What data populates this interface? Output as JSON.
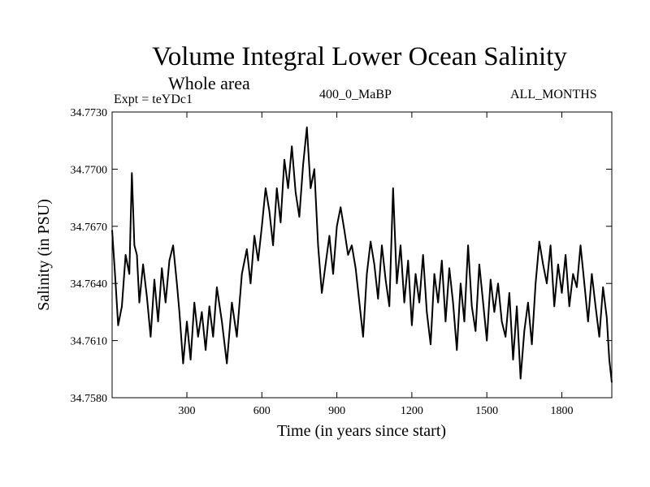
{
  "chart_data": {
    "type": "line",
    "title": "Volume Integral Lower Ocean Salinity",
    "subtitle": "Whole area",
    "left_note": "Expt = teYDc1",
    "center_note": "400_0_MaBP",
    "right_note": "ALL_MONTHS",
    "xlabel": "Time (in years since start)",
    "ylabel": "Salinity (in PSU)",
    "xlim": [
      1,
      2000
    ],
    "ylim": [
      34.758,
      34.773
    ],
    "xticks": [
      300,
      600,
      900,
      1200,
      1500,
      1800
    ],
    "yticks": [
      34.758,
      34.761,
      34.764,
      34.767,
      34.77,
      34.773
    ],
    "xtick_labels": [
      "300",
      "600",
      "900",
      "1200",
      "1500",
      "1800"
    ],
    "ytick_labels": [
      "34.7580",
      "34.7610",
      "34.7640",
      "34.7670",
      "34.7700",
      "34.7730"
    ],
    "series": [
      {
        "name": "salinity",
        "x": [
          1,
          15,
          25,
          40,
          55,
          70,
          80,
          90,
          100,
          110,
          125,
          140,
          155,
          170,
          185,
          200,
          215,
          230,
          245,
          260,
          270,
          285,
          300,
          315,
          330,
          345,
          360,
          375,
          390,
          405,
          420,
          440,
          460,
          480,
          500,
          520,
          540,
          555,
          570,
          585,
          600,
          615,
          630,
          645,
          660,
          675,
          690,
          705,
          720,
          735,
          750,
          765,
          780,
          795,
          810,
          825,
          840,
          855,
          870,
          885,
          900,
          915,
          930,
          945,
          960,
          975,
          990,
          1005,
          1020,
          1035,
          1050,
          1065,
          1080,
          1095,
          1110,
          1125,
          1140,
          1155,
          1170,
          1185,
          1200,
          1215,
          1230,
          1245,
          1260,
          1275,
          1290,
          1305,
          1320,
          1335,
          1350,
          1365,
          1380,
          1395,
          1410,
          1425,
          1440,
          1455,
          1470,
          1485,
          1500,
          1515,
          1530,
          1545,
          1560,
          1575,
          1590,
          1605,
          1620,
          1635,
          1650,
          1665,
          1680,
          1695,
          1710,
          1725,
          1740,
          1755,
          1770,
          1785,
          1800,
          1815,
          1830,
          1845,
          1860,
          1875,
          1890,
          1905,
          1920,
          1935,
          1950,
          1965,
          1980,
          1990,
          2000
        ],
        "values": [
          34.7668,
          34.764,
          34.7618,
          34.7628,
          34.7655,
          34.7645,
          34.7698,
          34.766,
          34.7655,
          34.763,
          34.765,
          34.7633,
          34.7612,
          34.7642,
          34.762,
          34.7648,
          34.763,
          34.7652,
          34.766,
          34.764,
          34.7625,
          34.7598,
          34.762,
          34.76,
          34.763,
          34.7612,
          34.7625,
          34.7605,
          34.7628,
          34.7612,
          34.7638,
          34.762,
          34.7598,
          34.763,
          34.7612,
          34.7645,
          34.7658,
          34.764,
          34.7665,
          34.7652,
          34.767,
          34.769,
          34.7678,
          34.766,
          34.769,
          34.7672,
          34.7705,
          34.769,
          34.7712,
          34.7688,
          34.7675,
          34.7702,
          34.7722,
          34.769,
          34.77,
          34.766,
          34.7635,
          34.765,
          34.7665,
          34.7645,
          34.767,
          34.768,
          34.7668,
          34.7655,
          34.766,
          34.7648,
          34.763,
          34.7612,
          34.7645,
          34.7662,
          34.765,
          34.7632,
          34.766,
          34.7642,
          34.7628,
          34.769,
          34.764,
          34.766,
          34.763,
          34.7652,
          34.7618,
          34.7645,
          34.763,
          34.7655,
          34.7625,
          34.7608,
          34.7645,
          34.763,
          34.7652,
          34.762,
          34.7648,
          34.763,
          34.7605,
          34.764,
          34.762,
          34.766,
          34.7628,
          34.7615,
          34.765,
          34.763,
          34.761,
          34.7642,
          34.7625,
          34.764,
          34.762,
          34.7612,
          34.7635,
          34.76,
          34.7628,
          34.759,
          34.7615,
          34.763,
          34.7608,
          34.764,
          34.7662,
          34.765,
          34.764,
          34.766,
          34.7628,
          34.765,
          34.7635,
          34.7655,
          34.7628,
          34.7645,
          34.7638,
          34.766,
          34.764,
          34.762,
          34.7645,
          34.7628,
          34.7612,
          34.7638,
          34.7622,
          34.76,
          34.7588
        ]
      }
    ]
  }
}
